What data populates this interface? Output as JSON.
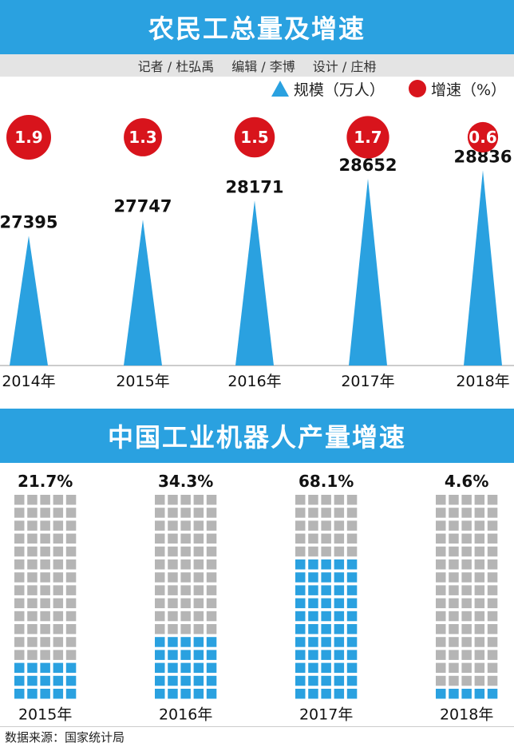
{
  "top_chart": {
    "title": "农民工总量及增速",
    "credits": {
      "reporter": "记者 / 杜弘禹",
      "editor": "编辑 / 李博",
      "design": "设计 / 庄枏"
    },
    "legend": {
      "scale": "规模（万人）",
      "growth": "增速（%）"
    }
  },
  "bottom_chart": {
    "title": "中国工业机器人产量增速"
  },
  "footer": {
    "source": "数据来源：国家统计局"
  },
  "colors": {
    "blue": "#2aa1e0",
    "red": "#d8141c",
    "gray": "#b5b5b5"
  },
  "chart_data": [
    {
      "type": "bar",
      "title": "农民工总量及增速",
      "categories": [
        "2014年",
        "2015年",
        "2016年",
        "2017年",
        "2018年"
      ],
      "series": [
        {
          "name": "规模（万人）",
          "values": [
            27395,
            27747,
            28171,
            28652,
            28836
          ]
        },
        {
          "name": "增速（%）",
          "values": [
            1.9,
            1.3,
            1.5,
            1.7,
            0.6
          ]
        }
      ]
    },
    {
      "type": "bar",
      "title": "中国工业机器人产量增速",
      "categories": [
        "2015年",
        "2016年",
        "2017年",
        "2018年"
      ],
      "values": [
        21.7,
        34.3,
        68.1,
        4.6
      ],
      "value_labels": [
        "21.7%",
        "34.3%",
        "68.1%",
        "4.6%"
      ]
    }
  ]
}
